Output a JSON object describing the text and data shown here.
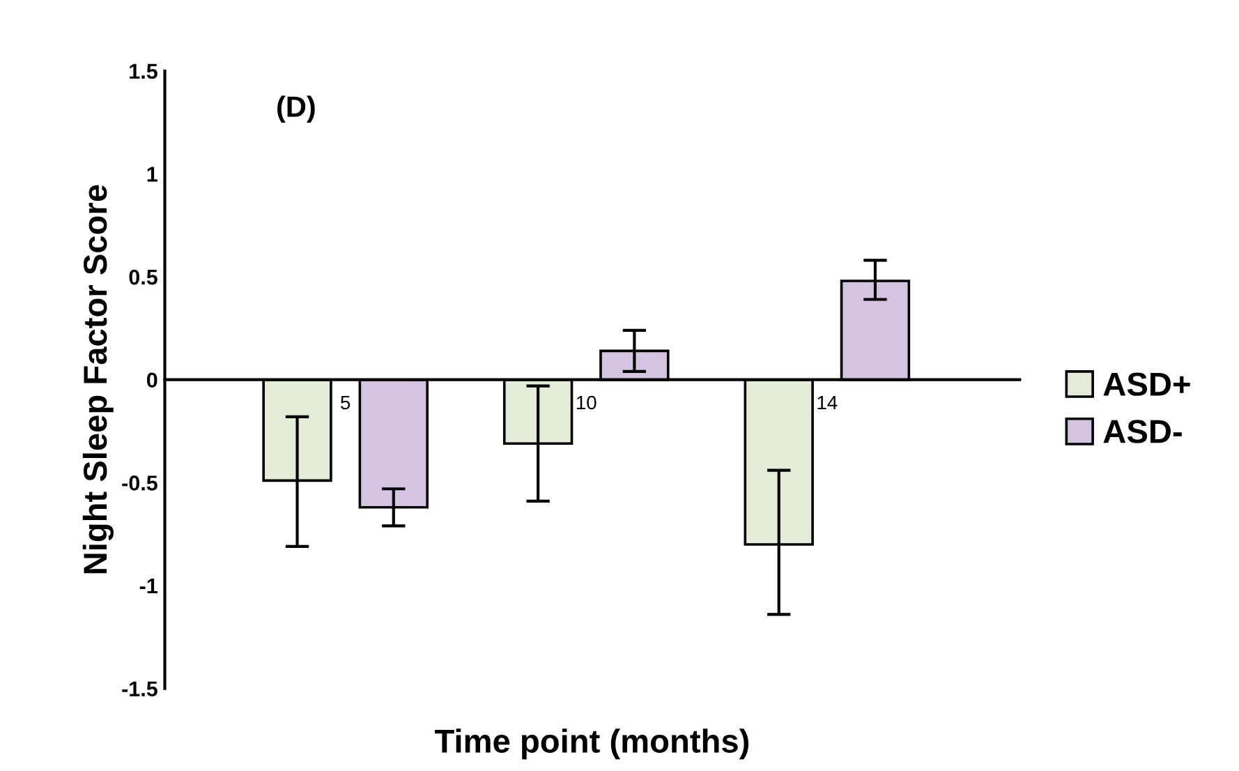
{
  "chart_data": {
    "type": "bar",
    "title": "(D)",
    "xlabel": "Time point (months)",
    "ylabel": "Night Sleep Factor Score",
    "categories": [
      "5",
      "10",
      "14"
    ],
    "series": [
      {
        "name": "ASD+",
        "color": "#e2ecd6",
        "values": [
          -0.49,
          -0.31,
          -0.8
        ],
        "errors": [
          [
            -0.81,
            -0.18
          ],
          [
            -0.59,
            -0.03
          ],
          [
            -1.14,
            -0.44
          ]
        ]
      },
      {
        "name": "ASD-",
        "color": "#d4c4e2",
        "values": [
          -0.62,
          0.14,
          0.48
        ],
        "errors": [
          [
            -0.71,
            -0.53
          ],
          [
            0.04,
            0.24
          ],
          [
            0.39,
            0.58
          ]
        ]
      }
    ],
    "ylim": [
      -1.5,
      1.5
    ],
    "yticks": [
      -1.5,
      -1,
      -0.5,
      0,
      0.5,
      1,
      1.5
    ],
    "grid": false,
    "legend": "right"
  }
}
